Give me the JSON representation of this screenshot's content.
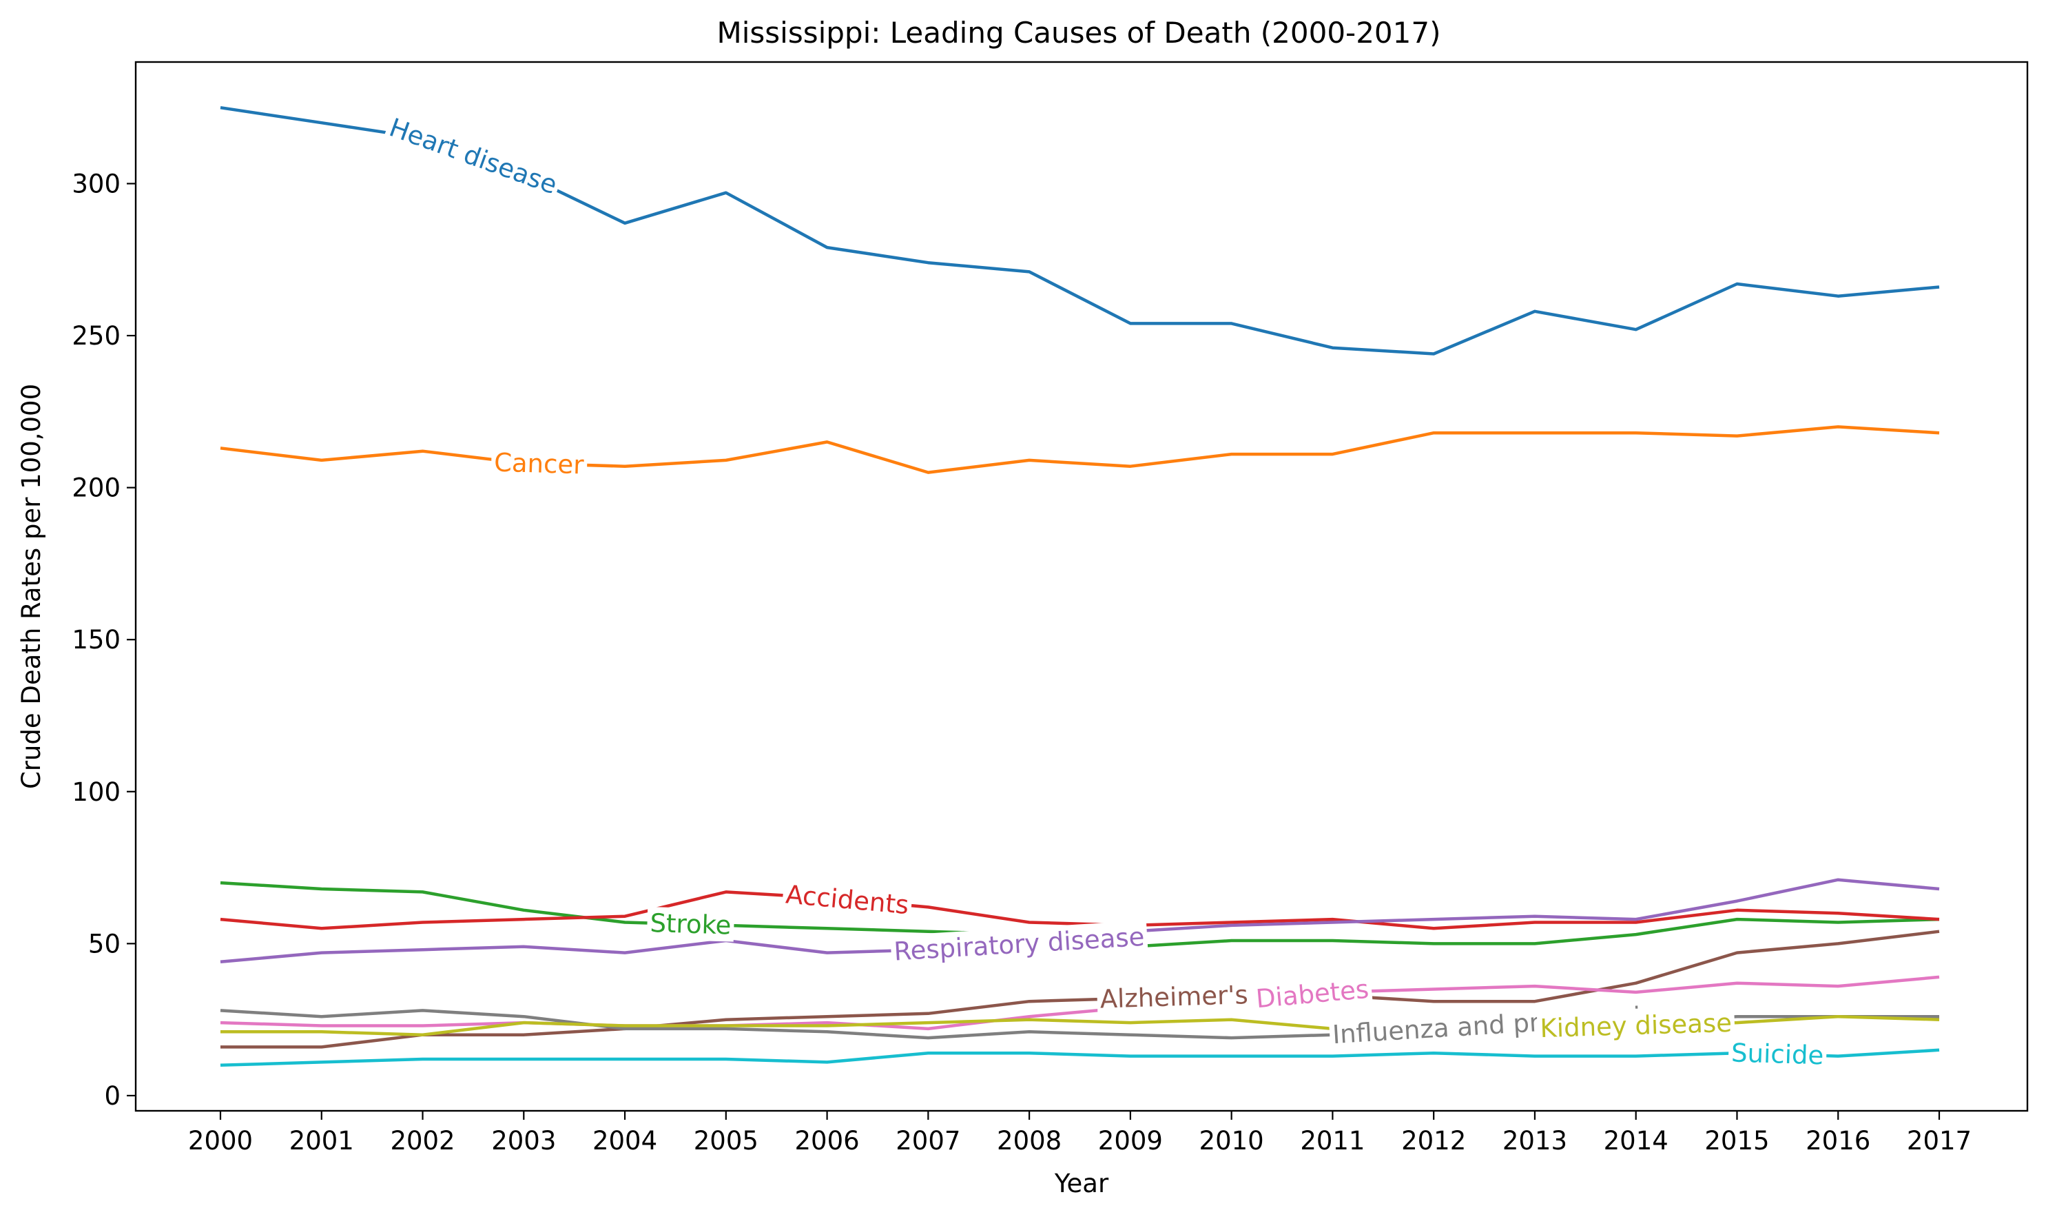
{
  "chart_data": {
    "type": "line",
    "title": "Mississippi: Leading Causes of Death (2000-2017)",
    "xlabel": "Year",
    "ylabel": "Crude Death Rates per 100,000",
    "ylim": [
      -5,
      340
    ],
    "y_ticks": [
      0,
      50,
      100,
      150,
      200,
      250,
      300
    ],
    "y_tick_labels": [
      "0",
      "50",
      "100",
      "150",
      "200",
      "250",
      "300"
    ],
    "categories": [
      "2000",
      "2001",
      "2002",
      "2003",
      "2004",
      "2005",
      "2006",
      "2007",
      "2008",
      "2009",
      "2010",
      "2011",
      "2012",
      "2013",
      "2014",
      "2015",
      "2016",
      "2017"
    ],
    "grid": false,
    "legend": "inline labels",
    "series": [
      {
        "name": "Heart disease",
        "color": "#1f77b4",
        "label_at": 2.5,
        "values": [
          325,
          320,
          315,
          303,
          287,
          297,
          279,
          274,
          271,
          254,
          254,
          246,
          244,
          258,
          252,
          267,
          263,
          266
        ]
      },
      {
        "name": "Cancer",
        "color": "#ff7f0e",
        "label_at": 3.15,
        "values": [
          213,
          209,
          212,
          208,
          207,
          209,
          215,
          205,
          209,
          207,
          211,
          211,
          218,
          218,
          218,
          217,
          220,
          218
        ]
      },
      {
        "name": "Stroke",
        "color": "#2ca02c",
        "label_at": 4.65,
        "values": [
          70,
          68,
          67,
          61,
          57,
          56,
          55,
          54,
          53,
          49,
          51,
          51,
          50,
          50,
          53,
          58,
          57,
          58
        ]
      },
      {
        "name": "Accidents",
        "color": "#d62728",
        "label_at": 6.2,
        "values": [
          58,
          55,
          57,
          58,
          59,
          67,
          65,
          62,
          57,
          56,
          57,
          58,
          55,
          57,
          57,
          61,
          60,
          58
        ]
      },
      {
        "name": "Respiratory disease",
        "color": "#9467bd",
        "label_at": 7.9,
        "values": [
          44,
          47,
          48,
          49,
          47,
          51,
          47,
          48,
          50,
          54,
          56,
          57,
          58,
          59,
          58,
          64,
          71,
          68
        ]
      },
      {
        "name": "Alzheimer's disease",
        "color": "#8c564b",
        "label_at": 9.95,
        "values": [
          16,
          16,
          20,
          20,
          22,
          25,
          26,
          27,
          31,
          32,
          33,
          33,
          31,
          31,
          37,
          47,
          50,
          54
        ]
      },
      {
        "name": "Diabetes",
        "color": "#e377c2",
        "label_at": 10.8,
        "values": [
          24,
          23,
          23,
          24,
          23,
          23,
          24,
          22,
          26,
          29,
          31,
          34,
          35,
          36,
          34,
          37,
          36,
          39
        ]
      },
      {
        "name": "Influenza and pneumonia",
        "color": "#7f7f7f",
        "label_at": 12.6,
        "values": [
          28,
          26,
          28,
          26,
          22,
          22,
          21,
          19,
          21,
          20,
          19,
          20,
          22,
          24,
          24,
          26,
          26,
          26
        ]
      },
      {
        "name": "Kidney disease",
        "color": "#bcbd22",
        "label_at": 14.0,
        "values": [
          21,
          21,
          20,
          24,
          23,
          23,
          23,
          24,
          25,
          24,
          25,
          22,
          23,
          24,
          23,
          24,
          26,
          25
        ]
      },
      {
        "name": "Suicide",
        "color": "#17becf",
        "label_at": 15.4,
        "values": [
          10,
          11,
          12,
          12,
          12,
          12,
          11,
          14,
          14,
          13,
          13,
          13,
          14,
          13,
          13,
          14,
          13,
          15
        ]
      }
    ]
  }
}
